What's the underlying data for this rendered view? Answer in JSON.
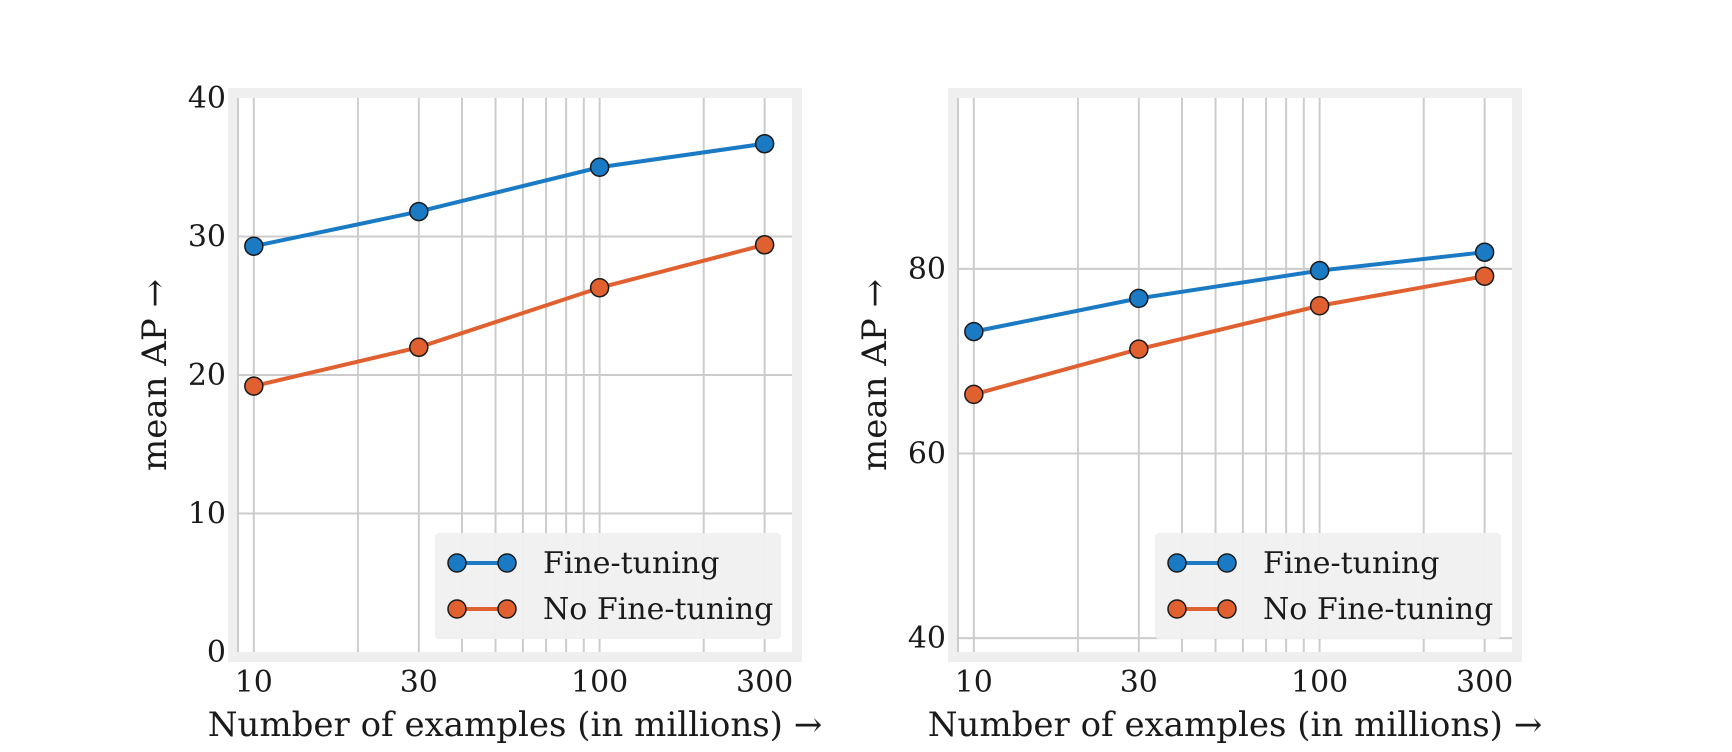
{
  "chart_data": [
    {
      "type": "line",
      "xscale": "log",
      "x": [
        10,
        30,
        100,
        300
      ],
      "xticks": [
        "10",
        "30",
        "100",
        "300"
      ],
      "xlim": [
        9,
        360
      ],
      "ylim": [
        0,
        40
      ],
      "yticks": [
        0,
        10,
        20,
        30,
        40
      ],
      "xlabel": "Number of examples (in millions) →",
      "ylabel": "mean AP →",
      "grid": true,
      "legend": "lower-right",
      "series": [
        {
          "name": "Fine-tuning",
          "color": "#1a7ac4",
          "values": [
            29.3,
            31.8,
            35.0,
            36.7
          ]
        },
        {
          "name": "No Fine-tuning",
          "color": "#e06030",
          "values": [
            19.2,
            22.0,
            26.3,
            29.4
          ]
        }
      ]
    },
    {
      "type": "line",
      "xscale": "log",
      "x": [
        10,
        30,
        100,
        300
      ],
      "xticks": [
        "10",
        "30",
        "100",
        "300"
      ],
      "xlim": [
        9,
        360
      ],
      "ylim": [
        38.5,
        98.5
      ],
      "yticks": [
        40,
        60,
        80
      ],
      "xlabel": "Number of examples (in millions) →",
      "ylabel": "mean AP →",
      "grid": true,
      "legend": "lower-right",
      "series": [
        {
          "name": "Fine-tuning",
          "color": "#1a7ac4",
          "values": [
            73.2,
            76.8,
            79.8,
            81.8
          ]
        },
        {
          "name": "No Fine-tuning",
          "color": "#e06030",
          "values": [
            66.4,
            71.3,
            76.0,
            79.2
          ]
        }
      ]
    }
  ]
}
